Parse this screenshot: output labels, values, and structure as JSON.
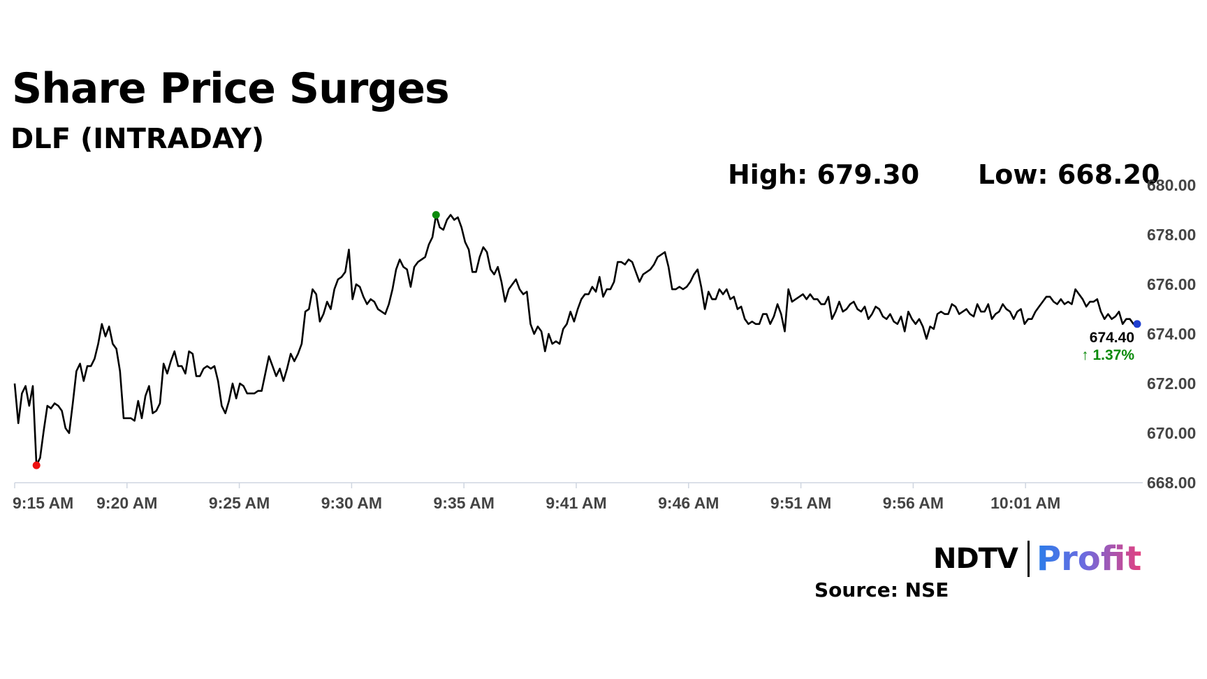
{
  "header": {
    "title": "Share Price Surges",
    "subtitle": "DLF (INTRADAY)"
  },
  "stats": {
    "high": "High: 679.30",
    "low": "Low: 668.20"
  },
  "footer": {
    "source": "Source: NSE",
    "logo_left": "NDTV",
    "logo_right": "Profit"
  },
  "colors": {
    "line": "#000000",
    "high_marker": "#0a8a0a",
    "low_marker": "#ee1111",
    "last_marker": "#1f3fd0",
    "change_text": "#0a8a0a",
    "axis_text": "#444444"
  },
  "chart_data": {
    "type": "line",
    "title": "Share Price Surges",
    "subtitle": "DLF (INTRADAY)",
    "xlabel": "",
    "ylabel": "",
    "ylim": [
      668,
      680
    ],
    "yticks": [
      "680.00",
      "678.00",
      "676.00",
      "674.00",
      "672.00",
      "670.00",
      "668.00"
    ],
    "xticks": [
      "9:15 AM",
      "9:20 AM",
      "9:25 AM",
      "9:30 AM",
      "9:35 AM",
      "9:41 AM",
      "9:46 AM",
      "9:51 AM",
      "9:56 AM",
      "10:01 AM"
    ],
    "grid": false,
    "last_value_label": "674.40",
    "change_label": "↑ 1.37%",
    "high_label": "High: 679.30",
    "low_label": "Low: 668.20",
    "series": [
      {
        "values": [
          672.0,
          670.4,
          671.6,
          671.9,
          671.1,
          671.9,
          668.7,
          669.0,
          670.1,
          671.1,
          671.0,
          671.2,
          671.1,
          670.9,
          670.2,
          670.0,
          671.2,
          672.5,
          672.8,
          672.1,
          672.7,
          672.7,
          673.0,
          673.6,
          674.4,
          673.9,
          674.3,
          673.6,
          673.4,
          672.5,
          670.6,
          670.6,
          670.6,
          670.5,
          671.3,
          670.6,
          671.5,
          671.9,
          670.8,
          670.9,
          671.2,
          672.8,
          672.4,
          672.9,
          673.3,
          672.7,
          672.7,
          672.4,
          673.3,
          673.2,
          672.3,
          672.3,
          672.6,
          672.7,
          672.6,
          672.7,
          672.1,
          671.1,
          670.8,
          671.3,
          672.0,
          671.4,
          672.0,
          671.9,
          671.6,
          671.6,
          671.6,
          671.7,
          671.7,
          672.4,
          673.1,
          672.7,
          672.3,
          672.6,
          672.1,
          672.6,
          673.2,
          672.9,
          673.2,
          673.6,
          674.9,
          675.0,
          675.8,
          675.6,
          674.5,
          674.8,
          675.3,
          675.0,
          675.8,
          676.2,
          676.3,
          676.5,
          677.4,
          675.4,
          676.0,
          675.9,
          675.5,
          675.2,
          675.4,
          675.3,
          675.0,
          674.9,
          674.8,
          675.2,
          675.8,
          676.6,
          677.0,
          676.7,
          676.6,
          675.9,
          676.7,
          676.9,
          677.0,
          677.1,
          677.6,
          677.9,
          678.8,
          678.3,
          678.2,
          678.6,
          678.8,
          678.6,
          678.7,
          678.3,
          677.7,
          677.4,
          676.5,
          676.5,
          677.1,
          677.5,
          677.3,
          676.6,
          676.4,
          676.7,
          676.1,
          675.3,
          675.8,
          676.0,
          676.2,
          675.8,
          675.6,
          675.7,
          674.4,
          674.0,
          674.3,
          674.1,
          673.3,
          674.0,
          673.6,
          673.7,
          673.6,
          674.2,
          674.4,
          674.9,
          674.5,
          675.0,
          675.4,
          675.6,
          675.6,
          675.9,
          675.7,
          676.3,
          675.5,
          675.8,
          675.8,
          676.1,
          676.9,
          676.9,
          676.8,
          677.0,
          676.9,
          676.5,
          676.1,
          676.4,
          676.5,
          676.6,
          676.8,
          677.1,
          677.2,
          677.3,
          676.7,
          675.8,
          675.8,
          675.9,
          675.8,
          675.9,
          676.1,
          676.4,
          676.6,
          675.9,
          675.0,
          675.7,
          675.4,
          675.4,
          675.8,
          675.6,
          675.8,
          675.4,
          675.5,
          675.0,
          675.1,
          674.6,
          674.4,
          674.5,
          674.4,
          674.4,
          674.8,
          674.8,
          674.4,
          674.7,
          675.2,
          674.8,
          674.1,
          675.8,
          675.3,
          675.4,
          675.5,
          675.6,
          675.4,
          675.6,
          675.4,
          675.4,
          675.2,
          675.2,
          675.5,
          674.6,
          674.9,
          675.3,
          674.9,
          675.0,
          675.2,
          675.3,
          675.0,
          674.9,
          675.1,
          674.6,
          674.8,
          675.1,
          675.0,
          674.7,
          674.6,
          674.8,
          674.5,
          674.4,
          674.7,
          674.1,
          674.9,
          674.6,
          674.4,
          674.6,
          674.3,
          673.8,
          674.3,
          674.2,
          674.8,
          674.9,
          674.8,
          674.8,
          675.2,
          675.1,
          674.8,
          674.9,
          675.0,
          674.8,
          674.7,
          675.2,
          674.9,
          674.9,
          675.2,
          674.6,
          674.8,
          674.9,
          675.2,
          675.0,
          674.9,
          674.6,
          674.9,
          675.0,
          674.4,
          674.6,
          674.6,
          674.9,
          675.1,
          675.3,
          675.5,
          675.5,
          675.3,
          675.2,
          675.4,
          675.2,
          675.3,
          675.2,
          675.8,
          675.6,
          675.4,
          675.1,
          675.3,
          675.3,
          675.4,
          674.9,
          674.6,
          674.8,
          674.6,
          674.7,
          674.9,
          674.4,
          674.6,
          674.6,
          674.4,
          674.4
        ]
      }
    ]
  }
}
